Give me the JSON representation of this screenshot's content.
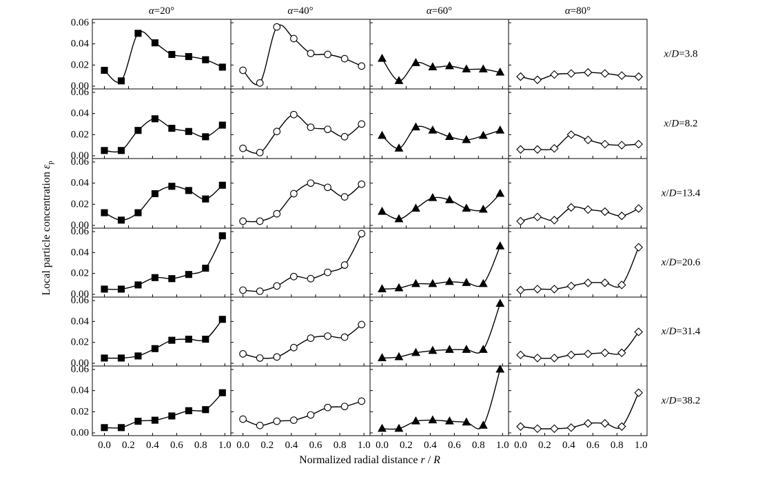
{
  "chart_data": {
    "type": "scatter",
    "layout": "small-multiples grid, 6 rows x 4 columns, points with smooth fitted curves",
    "x_values": [
      0.0,
      0.14,
      0.28,
      0.42,
      0.56,
      0.7,
      0.84,
      0.98
    ],
    "xlim": [
      -0.1,
      1.05
    ],
    "ylim": [
      0.0,
      0.06
    ],
    "x_ticks": [
      0.0,
      0.2,
      0.4,
      0.6,
      0.8,
      1.0
    ],
    "x_tick_labels": [
      "0.0",
      "0.2",
      "0.4",
      "0.6",
      "0.8",
      "1.0"
    ],
    "y_ticks": [
      0.0,
      0.02,
      0.04,
      0.06
    ],
    "y_tick_labels": [
      "0.00",
      "0.02",
      "0.04",
      "0.06"
    ],
    "xlabel": "Normalized radial distance r / R",
    "ylabel": "Local particle concentration εp",
    "columns": [
      {
        "label": "α=20°",
        "marker": "square",
        "filled": true
      },
      {
        "label": "α=40°",
        "marker": "circle",
        "filled": false
      },
      {
        "label": "α=60°",
        "marker": "triangle",
        "filled": true
      },
      {
        "label": "α=80°",
        "marker": "diamond",
        "filled": false
      }
    ],
    "rows": [
      {
        "label": "x/D=3.8",
        "values": [
          [
            0.015,
            0.005,
            0.05,
            0.041,
            0.03,
            0.028,
            0.025,
            0.018
          ],
          [
            0.015,
            0.003,
            0.056,
            0.045,
            0.031,
            0.03,
            0.026,
            0.019
          ],
          [
            0.026,
            0.005,
            0.022,
            0.018,
            0.019,
            0.016,
            0.016,
            0.013
          ],
          [
            0.009,
            0.006,
            0.011,
            0.012,
            0.013,
            0.012,
            0.01,
            0.009
          ]
        ]
      },
      {
        "label": "x/D=8.2",
        "values": [
          [
            0.005,
            0.005,
            0.024,
            0.035,
            0.026,
            0.023,
            0.018,
            0.029
          ],
          [
            0.007,
            0.003,
            0.023,
            0.039,
            0.027,
            0.025,
            0.018,
            0.03
          ],
          [
            0.019,
            0.007,
            0.027,
            0.024,
            0.018,
            0.015,
            0.019,
            0.024
          ],
          [
            0.006,
            0.006,
            0.007,
            0.02,
            0.015,
            0.011,
            0.01,
            0.011
          ]
        ]
      },
      {
        "label": "x/D=13.4",
        "values": [
          [
            0.012,
            0.005,
            0.012,
            0.03,
            0.037,
            0.033,
            0.025,
            0.038
          ],
          [
            0.004,
            0.004,
            0.011,
            0.03,
            0.04,
            0.036,
            0.027,
            0.039
          ],
          [
            0.013,
            0.006,
            0.016,
            0.026,
            0.024,
            0.016,
            0.015,
            0.03
          ],
          [
            0.004,
            0.008,
            0.005,
            0.017,
            0.015,
            0.013,
            0.009,
            0.016
          ]
        ]
      },
      {
        "label": "x/D=20.6",
        "values": [
          [
            0.005,
            0.005,
            0.009,
            0.016,
            0.015,
            0.019,
            0.025,
            0.056
          ],
          [
            0.004,
            0.003,
            0.008,
            0.017,
            0.015,
            0.021,
            0.028,
            0.058
          ],
          [
            0.005,
            0.006,
            0.01,
            0.01,
            0.012,
            0.011,
            0.01,
            0.046
          ],
          [
            0.004,
            0.005,
            0.005,
            0.008,
            0.011,
            0.011,
            0.009,
            0.045
          ]
        ]
      },
      {
        "label": "x/D=31.4",
        "values": [
          [
            0.005,
            0.005,
            0.007,
            0.014,
            0.022,
            0.023,
            0.023,
            0.042
          ],
          [
            0.009,
            0.005,
            0.006,
            0.015,
            0.024,
            0.026,
            0.025,
            0.037
          ],
          [
            0.005,
            0.006,
            0.01,
            0.012,
            0.013,
            0.013,
            0.013,
            0.057
          ],
          [
            0.008,
            0.005,
            0.005,
            0.008,
            0.009,
            0.01,
            0.01,
            0.03
          ]
        ]
      },
      {
        "label": "x/D=38.2",
        "values": [
          [
            0.005,
            0.005,
            0.011,
            0.012,
            0.016,
            0.021,
            0.022,
            0.038
          ],
          [
            0.013,
            0.007,
            0.011,
            0.012,
            0.017,
            0.024,
            0.025,
            0.03
          ],
          [
            0.004,
            0.004,
            0.011,
            0.012,
            0.011,
            0.01,
            0.007,
            0.06
          ],
          [
            0.006,
            0.004,
            0.004,
            0.005,
            0.009,
            0.009,
            0.006,
            0.038
          ]
        ]
      }
    ]
  }
}
